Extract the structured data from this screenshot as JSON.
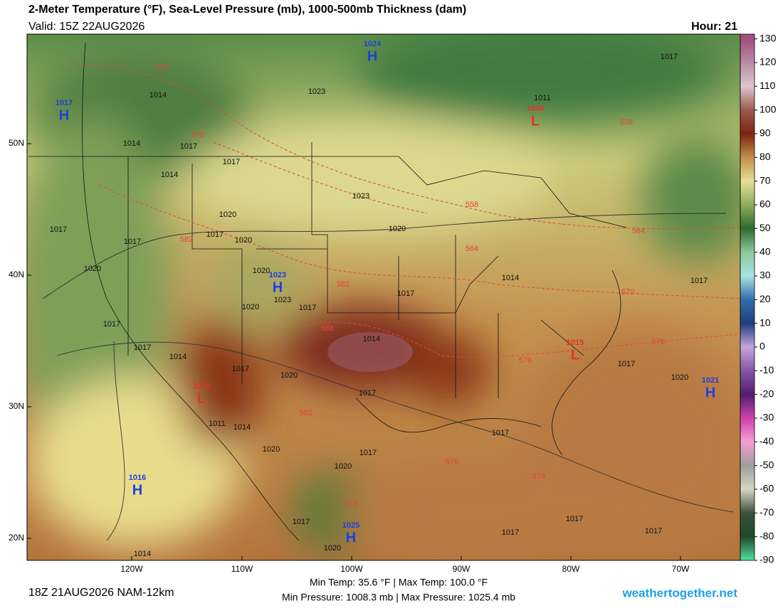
{
  "header": {
    "title": "2-Meter Temperature (°F), Sea-Level Pressure (mb), 1000-500mb Thickness (dam)",
    "valid": "Valid: 15Z 22AUG2026",
    "hour": "Hour: 21"
  },
  "colorbar": {
    "range": [
      -90,
      132
    ],
    "ticks": [
      130,
      120,
      110,
      100,
      90,
      80,
      70,
      60,
      50,
      40,
      30,
      20,
      10,
      0,
      -10,
      -20,
      -30,
      -40,
      -50,
      -60,
      -70,
      -80,
      -90
    ],
    "colors": [
      "#a2507f",
      "#b98aa6",
      "#dcc6d0",
      "#9c5a50",
      "#7e2412",
      "#c09048",
      "#e6df98",
      "#8fae5c",
      "#2f6a31",
      "#8dc79c",
      "#a8e2e2",
      "#2f6fae",
      "#1f3f7e",
      "#c3a6dc",
      "#8556a6",
      "#4f1f6f",
      "#d040b0",
      "#f39fd3",
      "#9e9e9e",
      "#d5d6c4",
      "#3d503e",
      "#1e4a2c",
      "#52e0a2"
    ]
  },
  "axes": {
    "lat_labels": [
      "50N",
      "40N",
      "30N",
      "20N"
    ],
    "lon_labels": [
      "120W",
      "110W",
      "100W",
      "90W",
      "80W",
      "70W"
    ]
  },
  "centers": [
    {
      "type": "H",
      "value": 1024
    },
    {
      "type": "H",
      "value": 1017
    },
    {
      "type": "L",
      "value": 1009
    },
    {
      "type": "H",
      "value": 1023
    },
    {
      "type": "L",
      "value": 1015
    },
    {
      "type": "L",
      "value": 1010
    },
    {
      "type": "H",
      "value": 1021
    },
    {
      "type": "H",
      "value": 1016
    },
    {
      "type": "H",
      "value": 1025
    }
  ],
  "isobar_labels": [
    1017,
    1014,
    1023,
    1011,
    1014,
    1017,
    1017,
    1014,
    1023,
    1020,
    1017,
    1017,
    1017,
    1020,
    1020,
    1020,
    1020,
    1014,
    1017,
    1017,
    1023,
    1020,
    1017,
    1017,
    1014,
    1017,
    1014,
    1017,
    1020,
    1017,
    1017,
    1020,
    1014,
    1011,
    1020,
    1017,
    1017,
    1020,
    1017,
    1020,
    1014,
    1017,
    1017,
    1017
  ],
  "thickness_labels": [
    570,
    576,
    558,
    558,
    564,
    564,
    582,
    582,
    570,
    588,
    576,
    576,
    582,
    576,
    576,
    576
  ],
  "footer": {
    "run": "18Z 21AUG2026 NAM-12km",
    "temps": "Min Temp:  35.6 °F | Max Temp: 100.0 °F",
    "pressure": "Min Pressure: 1008.3 mb | Max Pressure: 1025.4 mb",
    "site": "weathertogether.net"
  }
}
